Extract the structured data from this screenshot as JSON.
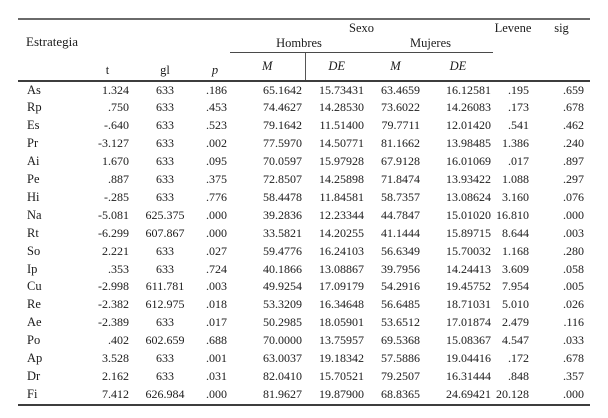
{
  "colors": {
    "background": "#ffffff",
    "text": "#1b1b1b",
    "rule_top": "#6a6a6a",
    "rule_dark": "#3d3d3d"
  },
  "table": {
    "headers": {
      "estrategia": "Estrategia",
      "sexo": "Sexo",
      "hombres": "Hombres",
      "mujeres": "Mujeres",
      "levene": "Levene",
      "sig": "sig",
      "t": "t",
      "gl": "gl",
      "p": "p",
      "m_hombres": "M",
      "de_hombres": "DE",
      "m_mujeres": "M",
      "de_mujeres": "DE"
    },
    "column_keys": [
      "label",
      "t",
      "gl",
      "p",
      "h_m",
      "h_de",
      "m_m",
      "m_de",
      "levene",
      "sig"
    ],
    "rows": [
      {
        "label": "As",
        "t": "1.324",
        "gl": "633",
        "p": ".186",
        "h_m": "65.1642",
        "h_de": "15.73431",
        "m_m": "63.4659",
        "m_de": "16.12581",
        "levene": ".195",
        "sig": ".659"
      },
      {
        "label": "Rp",
        "t": ".750",
        "gl": "633",
        "p": ".453",
        "h_m": "74.4627",
        "h_de": "14.28530",
        "m_m": "73.6022",
        "m_de": "14.26083",
        "levene": ".173",
        "sig": ".678"
      },
      {
        "label": "Es",
        "t": "-.640",
        "gl": "633",
        "p": ".523",
        "h_m": "79.1642",
        "h_de": "11.51400",
        "m_m": "79.7711",
        "m_de": "12.01420",
        "levene": ".541",
        "sig": ".462"
      },
      {
        "label": "Pr",
        "t": "-3.127",
        "gl": "633",
        "p": ".002",
        "h_m": "77.5970",
        "h_de": "14.50771",
        "m_m": "81.1662",
        "m_de": "13.98485",
        "levene": "1.386",
        "sig": ".240"
      },
      {
        "label": "Ai",
        "t": "1.670",
        "gl": "633",
        "p": ".095",
        "h_m": "70.0597",
        "h_de": "15.97928",
        "m_m": "67.9128",
        "m_de": "16.01069",
        "levene": ".017",
        "sig": ".897"
      },
      {
        "label": "Pe",
        "t": ".887",
        "gl": "633",
        "p": ".375",
        "h_m": "72.8507",
        "h_de": "14.25898",
        "m_m": "71.8474",
        "m_de": "13.93422",
        "levene": "1.088",
        "sig": ".297"
      },
      {
        "label": "Hi",
        "t": "-.285",
        "gl": "633",
        "p": ".776",
        "h_m": "58.4478",
        "h_de": "11.84581",
        "m_m": "58.7357",
        "m_de": "13.08624",
        "levene": "3.160",
        "sig": ".076"
      },
      {
        "label": "Na",
        "t": "-5.081",
        "gl": "625.375",
        "p": ".000",
        "h_m": "39.2836",
        "h_de": "12.23344",
        "m_m": "44.7847",
        "m_de": "15.01020",
        "levene": "16.810",
        "sig": ".000"
      },
      {
        "label": "Rt",
        "t": "-6.299",
        "gl": "607.867",
        "p": ".000",
        "h_m": "33.5821",
        "h_de": "14.20255",
        "m_m": "41.1444",
        "m_de": "15.89715",
        "levene": "8.644",
        "sig": ".003"
      },
      {
        "label": "So",
        "t": "2.221",
        "gl": "633",
        "p": ".027",
        "h_m": "59.4776",
        "h_de": "16.24103",
        "m_m": "56.6349",
        "m_de": "15.70032",
        "levene": "1.168",
        "sig": ".280"
      },
      {
        "label": "Ip",
        "t": ".353",
        "gl": "633",
        "p": ".724",
        "h_m": "40.1866",
        "h_de": "13.08867",
        "m_m": "39.7956",
        "m_de": "14.24413",
        "levene": "3.609",
        "sig": ".058"
      },
      {
        "label": "Cu",
        "t": "-2.998",
        "gl": "611.781",
        "p": ".003",
        "h_m": "49.9254",
        "h_de": "17.09179",
        "m_m": "54.2916",
        "m_de": "19.45752",
        "levene": "7.954",
        "sig": ".005"
      },
      {
        "label": "Re",
        "t": "-2.382",
        "gl": "612.975",
        "p": ".018",
        "h_m": "53.3209",
        "h_de": "16.34648",
        "m_m": "56.6485",
        "m_de": "18.71031",
        "levene": "5.010",
        "sig": ".026"
      },
      {
        "label": "Ae",
        "t": "-2.389",
        "gl": "633",
        "p": ".017",
        "h_m": "50.2985",
        "h_de": "18.05901",
        "m_m": "53.6512",
        "m_de": "17.01874",
        "levene": "2.479",
        "sig": ".116"
      },
      {
        "label": "Po",
        "t": ".402",
        "gl": "602.659",
        "p": ".688",
        "h_m": "70.0000",
        "h_de": "13.75957",
        "m_m": "69.5368",
        "m_de": "15.08367",
        "levene": "4.547",
        "sig": ".033"
      },
      {
        "label": "Ap",
        "t": "3.528",
        "gl": "633",
        "p": ".001",
        "h_m": "63.0037",
        "h_de": "19.18342",
        "m_m": "57.5886",
        "m_de": "19.04416",
        "levene": ".172",
        "sig": ".678"
      },
      {
        "label": "Dr",
        "t": "2.162",
        "gl": "633",
        "p": ".031",
        "h_m": "82.0410",
        "h_de": "15.70521",
        "m_m": "79.2507",
        "m_de": "16.31444",
        "levene": ".848",
        "sig": ".357"
      },
      {
        "label": "Fi",
        "t": "7.412",
        "gl": "626.984",
        "p": ".000",
        "h_m": "81.9627",
        "h_de": "19.87900",
        "m_m": "68.8365",
        "m_de": "24.69421",
        "levene": "20.128",
        "sig": ".000"
      }
    ]
  }
}
